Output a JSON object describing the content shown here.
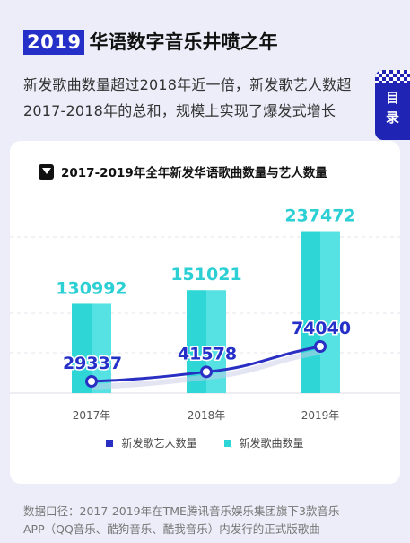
{
  "header": {
    "year_badge": "2019",
    "title": "华语数字音乐井喷之年"
  },
  "intro": {
    "line1": "新发歌曲数量超过2018年近一倍，新发歌艺人数超",
    "line2": "2017-2018年的总和，规模上实现了爆发式增长"
  },
  "toc": {
    "label_line1": "目",
    "label_line2": "录"
  },
  "colors": {
    "accent_blue": "#2530c8",
    "line_blue": "#2a2fc4",
    "bar_cyan": "#2fd6d6",
    "bar_cyan_light": "#56e2e2",
    "teal_label": "#2bcfd4"
  },
  "chart_data": {
    "type": "bar",
    "title": "2017-2019年全年新发华语歌曲数量与艺人数量",
    "categories": [
      "2017年",
      "2018年",
      "2019年"
    ],
    "series": [
      {
        "name": "新发歌曲数量",
        "type": "bar",
        "values": [
          130992,
          151021,
          237472
        ],
        "color": "#2fd6d6"
      },
      {
        "name": "新发歌艺人数量",
        "type": "line",
        "values": [
          29337,
          41578,
          74040
        ],
        "color": "#2a2fc4"
      }
    ],
    "data_labels": {
      "bars": [
        "130992",
        "151021",
        "237472"
      ],
      "line": [
        "29337",
        "41578",
        "74040"
      ]
    },
    "legend_position": "bottom",
    "grid": true
  },
  "source": {
    "line1": "数据口径：2017-2019年在TME腾讯音乐娱乐集团旗下3款音乐",
    "line2": "APP（QQ音乐、酷狗音乐、酷我音乐）内发行的正式版歌曲"
  }
}
